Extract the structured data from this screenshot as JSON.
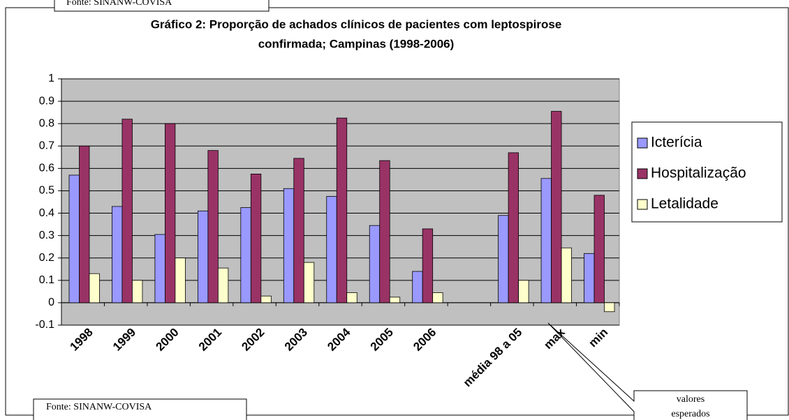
{
  "chart_data": {
    "type": "bar",
    "title": [
      "Gráfico 2: Proporção de achados clínicos de pacientes com leptospirose",
      "confirmada; Campinas (1998-2006)"
    ],
    "categories": [
      "1998",
      "1999",
      "2000",
      "2001",
      "2002",
      "2003",
      "2004",
      "2005",
      "2006",
      null,
      "média 98 a 05",
      "max",
      "min"
    ],
    "series": [
      {
        "name": "Icterícia",
        "color": "#9999ff",
        "values": [
          0.57,
          0.43,
          0.305,
          0.41,
          0.425,
          0.51,
          0.475,
          0.345,
          0.14,
          null,
          0.39,
          0.555,
          0.22
        ]
      },
      {
        "name": "Hospitalização",
        "color": "#993366",
        "values": [
          0.7,
          0.82,
          0.8,
          0.68,
          0.575,
          0.645,
          0.825,
          0.635,
          0.33,
          null,
          0.67,
          0.855,
          0.48
        ]
      },
      {
        "name": "Letalidade",
        "color": "#ffffcc",
        "values": [
          0.13,
          0.1,
          0.2,
          0.155,
          0.03,
          0.18,
          0.045,
          0.025,
          0.045,
          null,
          0.1,
          0.245,
          -0.04
        ]
      }
    ],
    "ylim": [
      -0.1,
      1
    ],
    "yticks": [
      -0.1,
      0,
      0.1,
      0.2,
      0.3,
      0.4,
      0.5,
      0.6,
      0.7,
      0.8,
      0.9,
      1
    ],
    "grid": true,
    "legend": "right",
    "source_top": "Fonte: SINANW-COVISA",
    "source_bottom": "Fonte: SINANW-COVISA",
    "callout": [
      "valores",
      "esperados"
    ]
  }
}
